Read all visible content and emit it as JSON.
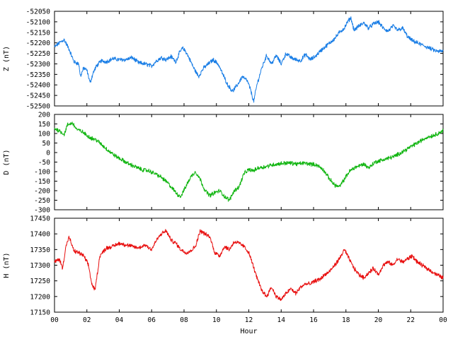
{
  "chart_data": {
    "type": "line",
    "x_label": "Hour",
    "x_ticks": [
      "00",
      "02",
      "04",
      "06",
      "08",
      "10",
      "12",
      "14",
      "16",
      "18",
      "20",
      "22",
      "00"
    ],
    "x_range": [
      0,
      24
    ],
    "panels": [
      {
        "ylabel": "Z (nT)",
        "color": "#1a7ee6",
        "ylim": [
          -52500,
          -52050
        ],
        "yticks": [
          -52050,
          -52100,
          -52150,
          -52200,
          -52250,
          -52300,
          -52350,
          -52400,
          -52450,
          -52500
        ],
        "x": [
          0,
          0.3,
          0.6,
          0.9,
          1.2,
          1.5,
          1.6,
          1.8,
          2.0,
          2.2,
          2.4,
          2.6,
          2.9,
          3.2,
          3.6,
          4.0,
          4.4,
          4.8,
          5.2,
          5.6,
          6.0,
          6.3,
          6.6,
          6.9,
          7.2,
          7.5,
          7.7,
          7.9,
          8.1,
          8.3,
          8.6,
          8.9,
          9.2,
          9.5,
          9.8,
          10.1,
          10.4,
          10.7,
          11.0,
          11.3,
          11.6,
          11.9,
          12.1,
          12.3,
          12.5,
          12.8,
          13.1,
          13.4,
          13.7,
          14.0,
          14.3,
          14.6,
          14.9,
          15.2,
          15.5,
          15.8,
          16.1,
          16.4,
          16.7,
          17.0,
          17.3,
          17.6,
          17.9,
          18.1,
          18.3,
          18.5,
          18.8,
          19.1,
          19.4,
          19.7,
          20.0,
          20.3,
          20.6,
          20.9,
          21.2,
          21.5,
          21.8,
          22.1,
          22.4,
          22.7,
          23.0,
          23.3,
          23.6,
          24.0
        ],
        "values": [
          -52220,
          -52200,
          -52185,
          -52230,
          -52290,
          -52300,
          -52360,
          -52320,
          -52330,
          -52390,
          -52340,
          -52310,
          -52285,
          -52290,
          -52275,
          -52280,
          -52280,
          -52270,
          -52295,
          -52300,
          -52310,
          -52285,
          -52270,
          -52280,
          -52265,
          -52290,
          -52250,
          -52225,
          -52240,
          -52270,
          -52320,
          -52360,
          -52320,
          -52300,
          -52280,
          -52300,
          -52350,
          -52400,
          -52430,
          -52400,
          -52360,
          -52380,
          -52420,
          -52480,
          -52400,
          -52320,
          -52260,
          -52300,
          -52260,
          -52300,
          -52250,
          -52270,
          -52280,
          -52285,
          -52255,
          -52280,
          -52265,
          -52240,
          -52220,
          -52200,
          -52180,
          -52150,
          -52130,
          -52100,
          -52080,
          -52140,
          -52120,
          -52105,
          -52130,
          -52110,
          -52100,
          -52130,
          -52145,
          -52120,
          -52140,
          -52130,
          -52170,
          -52190,
          -52200,
          -52210,
          -52220,
          -52230,
          -52240,
          -52240
        ]
      },
      {
        "ylabel": "D (nT)",
        "color": "#11b511",
        "ylim": [
          -300,
          200
        ],
        "yticks": [
          200,
          150,
          100,
          50,
          0,
          -50,
          -100,
          -150,
          -200,
          -250,
          -300
        ],
        "x": [
          0,
          0.3,
          0.6,
          0.8,
          1.1,
          1.4,
          1.7,
          2.0,
          2.3,
          2.6,
          3.0,
          3.4,
          3.8,
          4.2,
          4.6,
          5.0,
          5.4,
          5.8,
          6.2,
          6.6,
          7.0,
          7.3,
          7.6,
          7.8,
          8.1,
          8.4,
          8.7,
          9.0,
          9.3,
          9.6,
          9.9,
          10.2,
          10.5,
          10.8,
          11.1,
          11.4,
          11.7,
          12.0,
          12.3,
          12.6,
          13.0,
          13.4,
          13.8,
          14.2,
          14.6,
          15.0,
          15.4,
          15.8,
          16.2,
          16.6,
          17.0,
          17.3,
          17.6,
          17.9,
          18.2,
          18.5,
          18.8,
          19.1,
          19.4,
          19.8,
          20.2,
          20.6,
          21.0,
          21.4,
          21.8,
          22.2,
          22.6,
          23.0,
          23.4,
          23.8,
          24.0
        ],
        "values": [
          125,
          115,
          95,
          145,
          155,
          120,
          110,
          90,
          75,
          65,
          35,
          5,
          -20,
          -40,
          -60,
          -75,
          -90,
          -95,
          -110,
          -130,
          -160,
          -190,
          -220,
          -230,
          -180,
          -130,
          -100,
          -140,
          -200,
          -225,
          -210,
          -200,
          -230,
          -250,
          -200,
          -180,
          -110,
          -90,
          -95,
          -80,
          -75,
          -65,
          -60,
          -55,
          -55,
          -60,
          -55,
          -60,
          -65,
          -90,
          -140,
          -170,
          -180,
          -140,
          -100,
          -80,
          -70,
          -60,
          -80,
          -50,
          -40,
          -30,
          -20,
          0,
          20,
          40,
          60,
          80,
          90,
          105,
          115
        ]
      },
      {
        "ylabel": "H (nT)",
        "color": "#e81010",
        "ylim": [
          17150,
          17450
        ],
        "yticks": [
          17450,
          17400,
          17350,
          17300,
          17250,
          17200,
          17150
        ],
        "x": [
          0,
          0.3,
          0.5,
          0.7,
          0.9,
          1.2,
          1.5,
          1.8,
          2.1,
          2.3,
          2.5,
          2.8,
          3.2,
          3.6,
          4.0,
          4.4,
          4.8,
          5.2,
          5.6,
          6.0,
          6.3,
          6.6,
          6.9,
          7.2,
          7.5,
          7.8,
          8.1,
          8.4,
          8.7,
          9.0,
          9.3,
          9.6,
          9.9,
          10.2,
          10.5,
          10.8,
          11.1,
          11.4,
          11.7,
          12.0,
          12.2,
          12.5,
          12.8,
          13.1,
          13.4,
          13.7,
          14.0,
          14.3,
          14.6,
          14.9,
          15.2,
          15.5,
          15.8,
          16.1,
          16.4,
          16.7,
          17.0,
          17.3,
          17.6,
          17.9,
          18.2,
          18.5,
          18.8,
          19.1,
          19.4,
          19.7,
          20.0,
          20.3,
          20.6,
          20.9,
          21.2,
          21.5,
          21.8,
          22.1,
          22.4,
          22.7,
          23.0,
          23.3,
          23.6,
          24.0
        ],
        "values": [
          17310,
          17320,
          17290,
          17360,
          17390,
          17345,
          17340,
          17330,
          17300,
          17240,
          17220,
          17330,
          17355,
          17360,
          17370,
          17365,
          17360,
          17355,
          17365,
          17350,
          17380,
          17400,
          17410,
          17380,
          17370,
          17350,
          17340,
          17345,
          17360,
          17410,
          17400,
          17390,
          17340,
          17330,
          17360,
          17350,
          17375,
          17370,
          17360,
          17340,
          17310,
          17260,
          17220,
          17200,
          17230,
          17200,
          17190,
          17210,
          17225,
          17210,
          17230,
          17240,
          17240,
          17250,
          17255,
          17270,
          17280,
          17300,
          17320,
          17350,
          17320,
          17290,
          17270,
          17260,
          17275,
          17290,
          17270,
          17300,
          17310,
          17300,
          17320,
          17310,
          17320,
          17330,
          17310,
          17300,
          17290,
          17280,
          17270,
          17260
        ]
      }
    ]
  }
}
